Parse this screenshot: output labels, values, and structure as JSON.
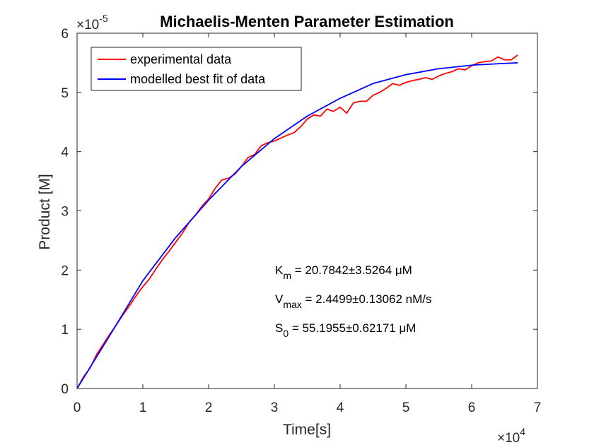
{
  "chart_data": {
    "type": "line",
    "title": "Michaelis-Menten Parameter Estimation",
    "xlabel": "Time[s]",
    "ylabel": "Product [M]",
    "xlim": [
      0,
      70000
    ],
    "ylim": [
      0,
      6e-05
    ],
    "x_ticks": [
      0,
      1,
      2,
      3,
      4,
      5,
      6,
      7
    ],
    "y_ticks": [
      0,
      1,
      2,
      3,
      4,
      5,
      6
    ],
    "x_exponent": {
      "base": "×10",
      "power": "4"
    },
    "y_exponent": {
      "base": "×10",
      "power": "-5"
    },
    "grid": false,
    "legend_position": "top-left",
    "series": [
      {
        "name": "experimental data",
        "color": "#ff0000",
        "x": [
          0,
          1000,
          2000,
          3000,
          4000,
          5000,
          6000,
          7000,
          8000,
          9000,
          10000,
          11000,
          12000,
          13000,
          14000,
          15000,
          16000,
          17000,
          18000,
          19000,
          20000,
          21000,
          22000,
          23000,
          24000,
          25000,
          26000,
          27000,
          28000,
          29000,
          30000,
          31000,
          32000,
          33000,
          34000,
          35000,
          36000,
          37000,
          38000,
          39000,
          40000,
          41000,
          42000,
          43000,
          44000,
          45000,
          46000,
          47000,
          48000,
          49000,
          50000,
          51000,
          52000,
          53000,
          54000,
          55000,
          56000,
          57000,
          58000,
          59000,
          60000,
          61000,
          62000,
          63000,
          64000,
          65000,
          66000,
          67000
        ],
        "y": [
          0.0,
          2e-06,
          3.5e-06,
          5.8e-06,
          7.5e-06,
          9.2e-06,
          1.08e-05,
          1.25e-05,
          1.4e-05,
          1.57e-05,
          1.72e-05,
          1.85e-05,
          2.02e-05,
          2.18e-05,
          2.32e-05,
          2.47e-05,
          2.62e-05,
          2.8e-05,
          2.93e-05,
          3.08e-05,
          3.2e-05,
          3.38e-05,
          3.52e-05,
          3.55e-05,
          3.62e-05,
          3.75e-05,
          3.9e-05,
          3.95e-05,
          4.1e-05,
          4.15e-05,
          4.18e-05,
          4.23e-05,
          4.28e-05,
          4.32e-05,
          4.42e-05,
          4.55e-05,
          4.62e-05,
          4.6e-05,
          4.72e-05,
          4.68e-05,
          4.75e-05,
          4.65e-05,
          4.82e-05,
          4.85e-05,
          4.85e-05,
          4.95e-05,
          5e-05,
          5.07e-05,
          5.15e-05,
          5.12e-05,
          5.17e-05,
          5.2e-05,
          5.22e-05,
          5.25e-05,
          5.22e-05,
          5.28e-05,
          5.32e-05,
          5.35e-05,
          5.4e-05,
          5.38e-05,
          5.45e-05,
          5.5e-05,
          5.52e-05,
          5.53e-05,
          5.6e-05,
          5.55e-05,
          5.55e-05,
          5.63e-05
        ]
      },
      {
        "name": "modelled best fit of data",
        "color": "#0000ff",
        "x": [
          0,
          5000,
          10000,
          15000,
          20000,
          25000,
          30000,
          35000,
          40000,
          45000,
          50000,
          55000,
          60000,
          65000,
          67000
        ],
        "y": [
          0.0,
          9e-06,
          1.82e-05,
          2.55e-05,
          3.18e-05,
          3.75e-05,
          4.22e-05,
          4.6e-05,
          4.9e-05,
          5.15e-05,
          5.3e-05,
          5.4e-05,
          5.46e-05,
          5.49e-05,
          5.5e-05
        ]
      }
    ],
    "annotations": [
      {
        "main": "K",
        "sub": "m",
        "rest": " = 20.7842±3.5264 μM"
      },
      {
        "main": "V",
        "sub": "max",
        "rest": " = 2.4499±0.13062 nM/s"
      },
      {
        "main": "S",
        "sub": "0",
        "rest": " = 55.1955±0.62171 μM"
      }
    ]
  }
}
